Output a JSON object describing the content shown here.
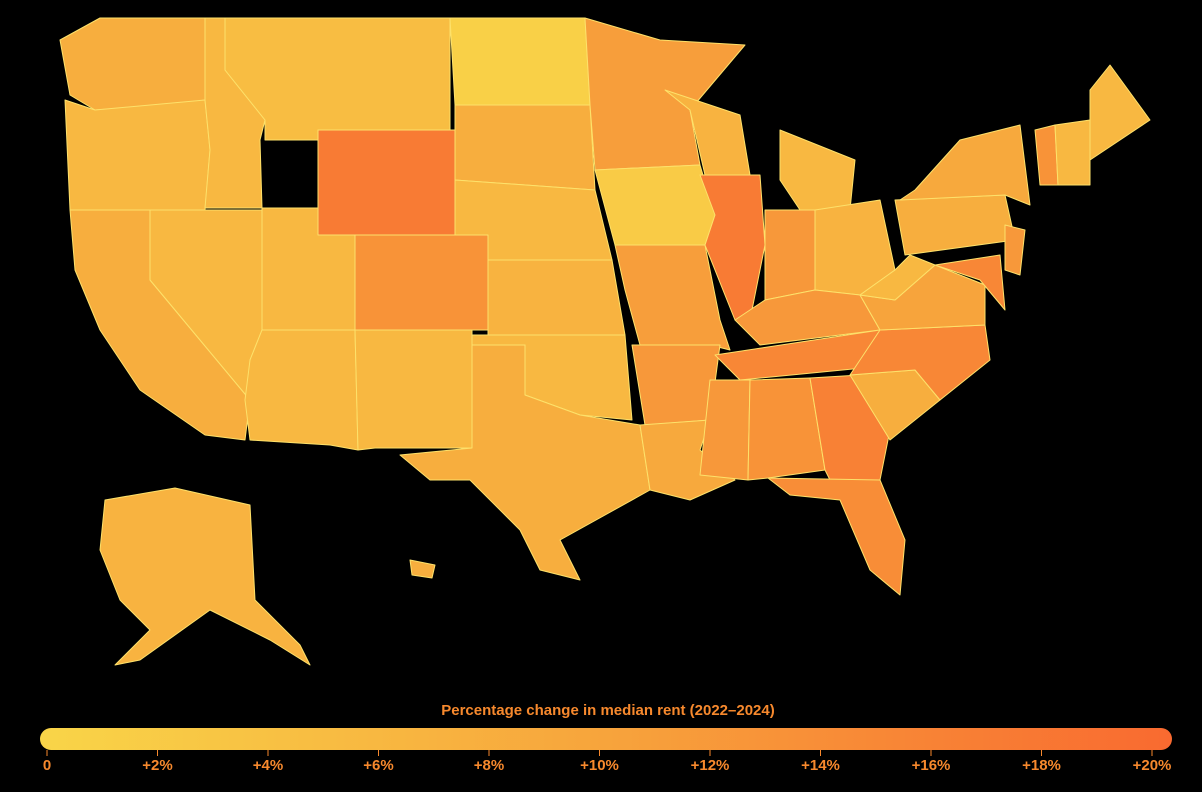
{
  "map": {
    "type": "choropleth",
    "region_values": [
      8,
      6,
      8,
      6,
      6,
      5,
      17,
      6,
      13,
      6,
      6,
      1,
      8,
      6,
      7,
      6,
      8,
      11,
      2,
      11,
      12,
      9,
      7,
      17,
      6,
      12,
      7,
      12,
      15,
      12,
      13,
      16,
      14,
      8,
      15,
      10,
      6,
      8,
      9,
      6,
      13,
      6,
      12,
      15,
      7,
      8
    ],
    "colorbar": {
      "title": "Percentage change in median rent (2022–2024)",
      "range": [
        0,
        20
      ],
      "colors": [
        "#f9d548",
        "#f7a43c",
        "#f96a30"
      ],
      "ticks": [
        0,
        {
          "value": 2,
          "label": "+2%"
        },
        {
          "value": 4,
          "label": "+4%"
        },
        {
          "value": 6,
          "label": "+6%"
        },
        {
          "value": 8,
          "label": "+8%"
        },
        {
          "value": 10,
          "label": "+10%"
        },
        {
          "value": 12,
          "label": "+12%"
        },
        {
          "value": 14,
          "label": "+14%"
        },
        {
          "value": 16,
          "label": "+16%"
        },
        {
          "value": 18,
          "label": "+18%"
        },
        {
          "value": 20,
          "label": "+20%"
        }
      ]
    }
  }
}
